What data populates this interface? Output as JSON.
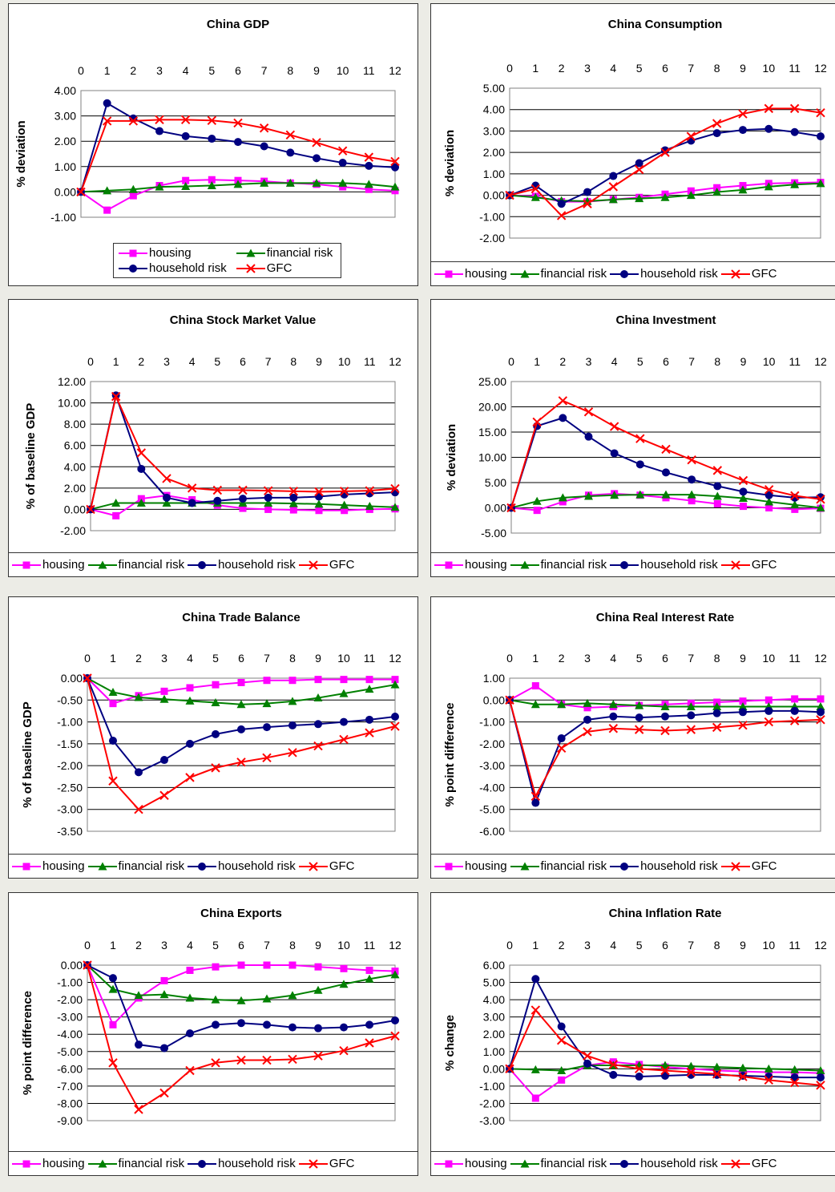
{
  "legend": {
    "series_names": [
      "housing",
      "financial risk",
      "household risk",
      "GFC"
    ],
    "colors": [
      "#ff00ff",
      "#008000",
      "#000080",
      "#ff0000"
    ],
    "markers": [
      "square",
      "triangle",
      "circle",
      "x"
    ]
  },
  "chart_data": [
    {
      "type": "line",
      "title": "China GDP",
      "ylabel": "% deviation",
      "x": [
        0,
        1,
        2,
        3,
        4,
        5,
        6,
        7,
        8,
        9,
        10,
        11,
        12
      ],
      "yticks": [
        "4.00",
        "3.00",
        "2.00",
        "1.00",
        "0.00",
        "-1.00"
      ],
      "ylim": [
        -1,
        4
      ],
      "grid": true,
      "legend_position": "bottom-inset",
      "series": [
        {
          "name": "housing",
          "values": [
            0,
            -0.72,
            -0.15,
            0.25,
            0.45,
            0.48,
            0.45,
            0.42,
            0.35,
            0.3,
            0.2,
            0.1,
            0.05
          ]
        },
        {
          "name": "financial risk",
          "values": [
            0,
            0.05,
            0.1,
            0.2,
            0.22,
            0.25,
            0.3,
            0.35,
            0.35,
            0.35,
            0.35,
            0.3,
            0.2
          ]
        },
        {
          "name": "household risk",
          "values": [
            0,
            3.5,
            2.9,
            2.4,
            2.2,
            2.1,
            1.97,
            1.8,
            1.55,
            1.33,
            1.15,
            1.03,
            0.97
          ]
        },
        {
          "name": "GFC",
          "values": [
            0,
            2.8,
            2.8,
            2.85,
            2.85,
            2.82,
            2.72,
            2.52,
            2.25,
            1.95,
            1.62,
            1.37,
            1.2
          ]
        }
      ]
    },
    {
      "type": "line",
      "title": "China Consumption",
      "ylabel": "% deviation",
      "x": [
        0,
        1,
        2,
        3,
        4,
        5,
        6,
        7,
        8,
        9,
        10,
        11,
        12
      ],
      "yticks": [
        "5.00",
        "4.00",
        "3.00",
        "2.00",
        "1.00",
        "0.00",
        "-1.00",
        "-2.00"
      ],
      "ylim": [
        -2,
        5
      ],
      "grid": true,
      "legend_position": "bottom",
      "series": [
        {
          "name": "housing",
          "values": [
            0,
            -0.05,
            -0.3,
            -0.3,
            -0.2,
            -0.1,
            0.05,
            0.2,
            0.35,
            0.45,
            0.55,
            0.58,
            0.6
          ]
        },
        {
          "name": "financial risk",
          "values": [
            0,
            -0.1,
            -0.25,
            -0.28,
            -0.2,
            -0.15,
            -0.1,
            0.0,
            0.15,
            0.25,
            0.4,
            0.5,
            0.55
          ]
        },
        {
          "name": "household risk",
          "values": [
            0,
            0.45,
            -0.4,
            0.15,
            0.9,
            1.5,
            2.1,
            2.55,
            2.9,
            3.05,
            3.1,
            2.95,
            2.75
          ]
        },
        {
          "name": "GFC",
          "values": [
            0,
            0.3,
            -0.95,
            -0.4,
            0.4,
            1.2,
            2.0,
            2.75,
            3.35,
            3.8,
            4.05,
            4.05,
            3.85
          ]
        }
      ]
    },
    {
      "type": "line",
      "title": "China Stock Market Value",
      "ylabel": "% of baseline GDP",
      "x": [
        0,
        1,
        2,
        3,
        4,
        5,
        6,
        7,
        8,
        9,
        10,
        11,
        12
      ],
      "yticks": [
        "12.00",
        "10.00",
        "8.00",
        "6.00",
        "4.00",
        "2.00",
        "0.00",
        "-2.00"
      ],
      "ylim": [
        -2,
        12
      ],
      "grid": true,
      "legend_position": "bottom",
      "series": [
        {
          "name": "housing",
          "values": [
            0,
            -0.6,
            1.0,
            1.3,
            0.9,
            0.4,
            0.1,
            0.0,
            -0.05,
            -0.1,
            -0.1,
            0.0,
            0.05
          ]
        },
        {
          "name": "financial risk",
          "values": [
            0,
            0.6,
            0.6,
            0.6,
            0.6,
            0.6,
            0.6,
            0.6,
            0.55,
            0.5,
            0.4,
            0.3,
            0.2
          ]
        },
        {
          "name": "household risk",
          "values": [
            0,
            10.7,
            3.8,
            1.1,
            0.6,
            0.8,
            1.0,
            1.1,
            1.1,
            1.2,
            1.4,
            1.5,
            1.6
          ]
        },
        {
          "name": "GFC",
          "values": [
            0,
            10.6,
            5.3,
            2.9,
            2.0,
            1.8,
            1.8,
            1.75,
            1.7,
            1.65,
            1.7,
            1.75,
            1.95
          ]
        }
      ]
    },
    {
      "type": "line",
      "title": "China Investment",
      "ylabel": "% deviation",
      "x": [
        0,
        1,
        2,
        3,
        4,
        5,
        6,
        7,
        8,
        9,
        10,
        11,
        12
      ],
      "yticks": [
        "25.00",
        "20.00",
        "15.00",
        "10.00",
        "5.00",
        "0.00",
        "-5.00"
      ],
      "ylim": [
        -5,
        25
      ],
      "grid": true,
      "legend_position": "bottom",
      "series": [
        {
          "name": "housing",
          "values": [
            0,
            -0.5,
            1.2,
            2.5,
            2.8,
            2.5,
            2.0,
            1.4,
            0.8,
            0.3,
            0.0,
            -0.3,
            -0.1
          ]
        },
        {
          "name": "financial risk",
          "values": [
            0,
            1.3,
            2.0,
            2.3,
            2.5,
            2.6,
            2.6,
            2.6,
            2.3,
            1.9,
            1.2,
            0.6,
            0.0
          ]
        },
        {
          "name": "household risk",
          "values": [
            0,
            16.2,
            17.8,
            14.1,
            10.8,
            8.6,
            7.0,
            5.6,
            4.3,
            3.2,
            2.5,
            2.0,
            2.1
          ]
        },
        {
          "name": "GFC",
          "values": [
            0,
            17.0,
            21.2,
            19.0,
            16.1,
            13.7,
            11.6,
            9.5,
            7.4,
            5.4,
            3.6,
            2.4,
            1.7
          ]
        }
      ]
    },
    {
      "type": "line",
      "title": "China Trade Balance",
      "ylabel": "% of baseline GDP",
      "x": [
        0,
        1,
        2,
        3,
        4,
        5,
        6,
        7,
        8,
        9,
        10,
        11,
        12
      ],
      "yticks": [
        "0.00",
        "-0.50",
        "-1.00",
        "-1.50",
        "-2.00",
        "-2.50",
        "-3.00",
        "-3.50"
      ],
      "ylim": [
        -3.5,
        0
      ],
      "grid": true,
      "legend_position": "bottom",
      "series": [
        {
          "name": "housing",
          "values": [
            0,
            -0.58,
            -0.4,
            -0.3,
            -0.22,
            -0.15,
            -0.1,
            -0.05,
            -0.05,
            -0.03,
            -0.03,
            -0.03,
            -0.03
          ]
        },
        {
          "name": "financial risk",
          "values": [
            0,
            -0.32,
            -0.44,
            -0.48,
            -0.52,
            -0.56,
            -0.6,
            -0.58,
            -0.53,
            -0.45,
            -0.35,
            -0.25,
            -0.15
          ]
        },
        {
          "name": "household risk",
          "values": [
            0,
            -1.43,
            -2.15,
            -1.87,
            -1.5,
            -1.28,
            -1.17,
            -1.12,
            -1.08,
            -1.05,
            -1.0,
            -0.95,
            -0.88
          ]
        },
        {
          "name": "GFC",
          "values": [
            0,
            -2.35,
            -3.0,
            -2.68,
            -2.27,
            -2.05,
            -1.92,
            -1.82,
            -1.7,
            -1.55,
            -1.4,
            -1.25,
            -1.1
          ]
        }
      ]
    },
    {
      "type": "line",
      "title": "China Real Interest Rate",
      "ylabel": "% point difference",
      "x": [
        0,
        1,
        2,
        3,
        4,
        5,
        6,
        7,
        8,
        9,
        10,
        11,
        12
      ],
      "yticks": [
        "1.00",
        "0.00",
        "-1.00",
        "-2.00",
        "-3.00",
        "-4.00",
        "-5.00",
        "-6.00"
      ],
      "ylim": [
        -6,
        1
      ],
      "grid": true,
      "legend_position": "bottom",
      "series": [
        {
          "name": "housing",
          "values": [
            0,
            0.65,
            -0.2,
            -0.35,
            -0.3,
            -0.25,
            -0.2,
            -0.15,
            -0.1,
            -0.05,
            0.0,
            0.05,
            0.05
          ]
        },
        {
          "name": "financial risk",
          "values": [
            0,
            -0.2,
            -0.2,
            -0.15,
            -0.2,
            -0.25,
            -0.3,
            -0.3,
            -0.3,
            -0.3,
            -0.3,
            -0.3,
            -0.3
          ]
        },
        {
          "name": "household risk",
          "values": [
            0,
            -4.7,
            -1.75,
            -0.9,
            -0.75,
            -0.8,
            -0.75,
            -0.7,
            -0.6,
            -0.55,
            -0.5,
            -0.5,
            -0.55
          ]
        },
        {
          "name": "GFC",
          "values": [
            0,
            -4.4,
            -2.2,
            -1.45,
            -1.3,
            -1.35,
            -1.4,
            -1.35,
            -1.25,
            -1.15,
            -1.0,
            -0.95,
            -0.9
          ]
        }
      ]
    },
    {
      "type": "line",
      "title": "China Exports",
      "ylabel": "% point difference",
      "x": [
        0,
        1,
        2,
        3,
        4,
        5,
        6,
        7,
        8,
        9,
        10,
        11,
        12
      ],
      "yticks": [
        "0.00",
        "-1.00",
        "-2.00",
        "-3.00",
        "-4.00",
        "-5.00",
        "-6.00",
        "-7.00",
        "-8.00",
        "-9.00"
      ],
      "ylim": [
        -9,
        0
      ],
      "grid": true,
      "legend_position": "bottom",
      "series": [
        {
          "name": "housing",
          "values": [
            0,
            -3.45,
            -1.9,
            -0.9,
            -0.3,
            -0.1,
            0.0,
            0.0,
            0.0,
            -0.1,
            -0.2,
            -0.3,
            -0.35
          ]
        },
        {
          "name": "financial risk",
          "values": [
            0,
            -1.4,
            -1.75,
            -1.7,
            -1.9,
            -2.0,
            -2.05,
            -1.95,
            -1.75,
            -1.45,
            -1.1,
            -0.8,
            -0.55
          ]
        },
        {
          "name": "household risk",
          "values": [
            0,
            -0.75,
            -4.6,
            -4.8,
            -3.95,
            -3.45,
            -3.35,
            -3.45,
            -3.6,
            -3.65,
            -3.6,
            -3.45,
            -3.2
          ]
        },
        {
          "name": "GFC",
          "values": [
            0,
            -5.65,
            -8.35,
            -7.4,
            -6.1,
            -5.65,
            -5.5,
            -5.5,
            -5.45,
            -5.25,
            -4.95,
            -4.5,
            -4.1
          ]
        }
      ]
    },
    {
      "type": "line",
      "title": "China Inflation Rate",
      "ylabel": "% change",
      "x": [
        0,
        1,
        2,
        3,
        4,
        5,
        6,
        7,
        8,
        9,
        10,
        11,
        12
      ],
      "yticks": [
        "6.00",
        "5.00",
        "4.00",
        "3.00",
        "2.00",
        "1.00",
        "0.00",
        "-1.00",
        "-2.00",
        "-3.00"
      ],
      "ylim": [
        -3,
        6
      ],
      "grid": true,
      "legend_position": "bottom",
      "series": [
        {
          "name": "housing",
          "values": [
            0,
            -1.7,
            -0.65,
            0.2,
            0.4,
            0.25,
            0.1,
            0.0,
            -0.1,
            -0.15,
            -0.2,
            -0.2,
            -0.25
          ]
        },
        {
          "name": "financial risk",
          "values": [
            0,
            -0.05,
            -0.1,
            0.2,
            0.2,
            0.2,
            0.2,
            0.15,
            0.1,
            0.05,
            0.0,
            -0.05,
            -0.1
          ]
        },
        {
          "name": "household risk",
          "values": [
            0,
            5.2,
            2.45,
            0.3,
            -0.35,
            -0.45,
            -0.4,
            -0.35,
            -0.35,
            -0.4,
            -0.45,
            -0.5,
            -0.5
          ]
        },
        {
          "name": "GFC",
          "values": [
            0,
            3.4,
            1.65,
            0.75,
            0.25,
            0.0,
            -0.1,
            -0.2,
            -0.3,
            -0.45,
            -0.65,
            -0.8,
            -0.95
          ]
        }
      ]
    }
  ]
}
